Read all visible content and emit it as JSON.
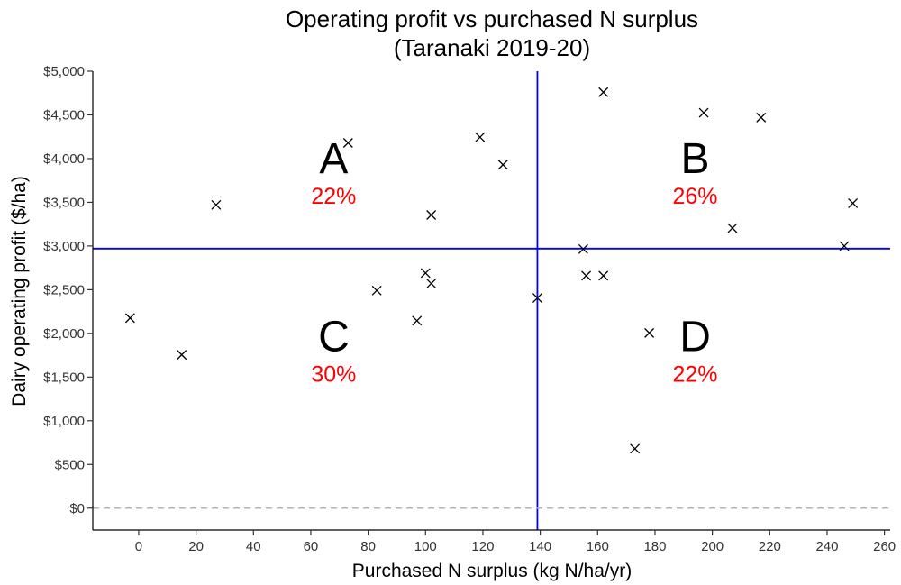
{
  "chart_data": {
    "type": "scatter",
    "title": [
      "Operating profit vs purchased N surplus",
      "(Taranaki 2019-20)"
    ],
    "xlabel": "Purchased N surplus (kg N/ha/yr)",
    "ylabel": "Dairy operating profit ($/ha)",
    "xlim": [
      -16,
      262
    ],
    "ylim": [
      -250,
      5000
    ],
    "x_ticks": [
      0,
      20,
      40,
      60,
      80,
      100,
      120,
      140,
      160,
      180,
      200,
      220,
      240,
      260
    ],
    "x_tick_labels": [
      "0",
      "20",
      "40",
      "60",
      "80",
      "100",
      "120",
      "140",
      "160",
      "180",
      "200",
      "220",
      "240",
      "260"
    ],
    "y_ticks": [
      0,
      500,
      1000,
      1500,
      2000,
      2500,
      3000,
      3500,
      4000,
      4500,
      5000
    ],
    "y_tick_labels": [
      "$0",
      "$500",
      "$1,000",
      "$1,500",
      "$2,000",
      "$2,500",
      "$3,000",
      "$3,500",
      "$4,000",
      "$4,500",
      "$5,000"
    ],
    "grid": false,
    "marker": "x",
    "points": [
      {
        "x": -3,
        "y": 2175
      },
      {
        "x": 15,
        "y": 1755
      },
      {
        "x": 27,
        "y": 3470
      },
      {
        "x": 73,
        "y": 4180
      },
      {
        "x": 83,
        "y": 2490
      },
      {
        "x": 97,
        "y": 2145
      },
      {
        "x": 100,
        "y": 2690
      },
      {
        "x": 102,
        "y": 2570
      },
      {
        "x": 102,
        "y": 3355
      },
      {
        "x": 119,
        "y": 4245
      },
      {
        "x": 127,
        "y": 3930
      },
      {
        "x": 139,
        "y": 2405
      },
      {
        "x": 155,
        "y": 2965
      },
      {
        "x": 156,
        "y": 2660
      },
      {
        "x": 162,
        "y": 2660
      },
      {
        "x": 162,
        "y": 4760
      },
      {
        "x": 173,
        "y": 680
      },
      {
        "x": 178,
        "y": 2005
      },
      {
        "x": 197,
        "y": 4525
      },
      {
        "x": 207,
        "y": 3205
      },
      {
        "x": 217,
        "y": 4470
      },
      {
        "x": 246,
        "y": 3000
      },
      {
        "x": 249,
        "y": 3490
      }
    ],
    "reference_lines": [
      {
        "orientation": "vertical",
        "value": 139,
        "color": "#0000ff",
        "style": "solid"
      },
      {
        "orientation": "horizontal",
        "value": 2970,
        "color": "#0000ff",
        "style": "solid"
      },
      {
        "orientation": "horizontal",
        "value": 0,
        "color": "#b3b3b3",
        "style": "dashed"
      }
    ],
    "quadrants": [
      {
        "label": "A",
        "percent": "22%",
        "x": 68,
        "y": 4000
      },
      {
        "label": "B",
        "percent": "26%",
        "x": 194,
        "y": 4000
      },
      {
        "label": "C",
        "percent": "30%",
        "x": 68,
        "y": 1960
      },
      {
        "label": "D",
        "percent": "22%",
        "x": 194,
        "y": 1960
      }
    ],
    "colors": {
      "points": "#000000",
      "reference": "#0000ff",
      "zero_line": "#b3b3b3",
      "percent_text": "#ff0000"
    }
  }
}
